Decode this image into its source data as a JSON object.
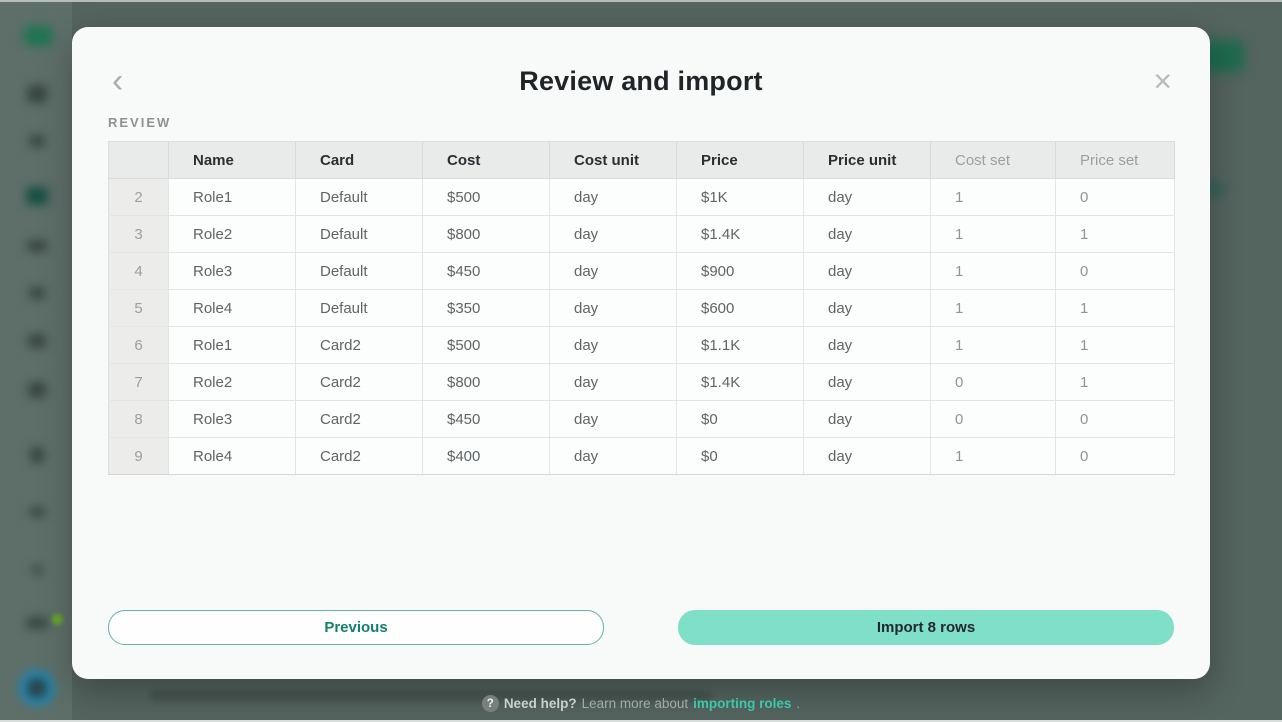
{
  "colors": {
    "accent_teal_text": "#14806c",
    "mint_button_bg": "#7fdfc7",
    "link_teal": "#3cc7a9",
    "overlay_bg": "#54645f",
    "modal_bg": "#f8faf9",
    "table_header_bg": "#e9eaea"
  },
  "modal": {
    "title": "Review and import",
    "section_label": "REVIEW",
    "back_icon": "‹",
    "close_icon": "×",
    "previous_label": "Previous",
    "import_label": "Import 8 rows"
  },
  "table": {
    "headers": [
      {
        "label": "",
        "muted": false
      },
      {
        "label": "Name",
        "muted": false
      },
      {
        "label": "Card",
        "muted": false
      },
      {
        "label": "Cost",
        "muted": false
      },
      {
        "label": "Cost unit",
        "muted": false
      },
      {
        "label": "Price",
        "muted": false
      },
      {
        "label": "Price unit",
        "muted": false
      },
      {
        "label": "Cost set",
        "muted": true
      },
      {
        "label": "Price set",
        "muted": true
      }
    ],
    "rows": [
      [
        "2",
        "Role1",
        "Default",
        "$500",
        "day",
        "$1K",
        "day",
        "1",
        "0"
      ],
      [
        "3",
        "Role2",
        "Default",
        "$800",
        "day",
        "$1.4K",
        "day",
        "1",
        "1"
      ],
      [
        "4",
        "Role3",
        "Default",
        "$450",
        "day",
        "$900",
        "day",
        "1",
        "0"
      ],
      [
        "5",
        "Role4",
        "Default",
        "$350",
        "day",
        "$600",
        "day",
        "1",
        "1"
      ],
      [
        "6",
        "Role1",
        "Card2",
        "$500",
        "day",
        "$1.1K",
        "day",
        "1",
        "1"
      ],
      [
        "7",
        "Role2",
        "Card2",
        "$800",
        "day",
        "$1.4K",
        "day",
        "0",
        "1"
      ],
      [
        "8",
        "Role3",
        "Card2",
        "$450",
        "day",
        "$0",
        "day",
        "0",
        "0"
      ],
      [
        "9",
        "Role4",
        "Card2",
        "$400",
        "day",
        "$0",
        "day",
        "1",
        "0"
      ]
    ]
  },
  "footer": {
    "help_icon": "?",
    "need_help": "Need help?",
    "learn_more": "Learn more about",
    "link": "importing roles",
    "period": "."
  }
}
